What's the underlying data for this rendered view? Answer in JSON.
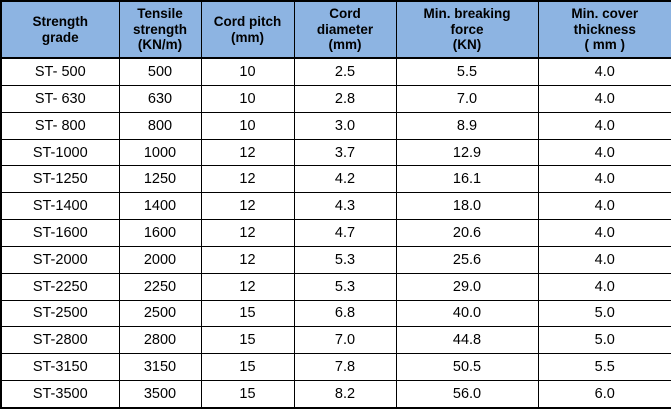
{
  "colors": {
    "header_bg": "#8DB4E2",
    "border": "#000000",
    "text": "#000000",
    "row_bg": "#FFFFFF"
  },
  "table": {
    "headers": [
      "Strength\ngrade",
      "Tensile\nstrength\n(KN/m)",
      "Cord pitch\n(mm)",
      "Cord\ndiameter\n(mm)",
      "Min. breaking\nforce\n(KN)",
      "Min. cover\nthickness\n( mm )"
    ],
    "rows": [
      [
        "ST- 500",
        "500",
        "10",
        "2.5",
        "5.5",
        "4.0"
      ],
      [
        "ST- 630",
        "630",
        "10",
        "2.8",
        "7.0",
        "4.0"
      ],
      [
        "ST- 800",
        "800",
        "10",
        "3.0",
        "8.9",
        "4.0"
      ],
      [
        "ST-1000",
        "1000",
        "12",
        "3.7",
        "12.9",
        "4.0"
      ],
      [
        "ST-1250",
        "1250",
        "12",
        "4.2",
        "16.1",
        "4.0"
      ],
      [
        "ST-1400",
        "1400",
        "12",
        "4.3",
        "18.0",
        "4.0"
      ],
      [
        "ST-1600",
        "1600",
        "12",
        "4.7",
        "20.6",
        "4.0"
      ],
      [
        "ST-2000",
        "2000",
        "12",
        "5.3",
        "25.6",
        "4.0"
      ],
      [
        "ST-2250",
        "2250",
        "12",
        "5.3",
        "29.0",
        "4.0"
      ],
      [
        "ST-2500",
        "2500",
        "15",
        "6.8",
        "40.0",
        "5.0"
      ],
      [
        "ST-2800",
        "2800",
        "15",
        "7.0",
        "44.8",
        "5.0"
      ],
      [
        "ST-3150",
        "3150",
        "15",
        "7.8",
        "50.5",
        "5.5"
      ],
      [
        "ST-3500",
        "3500",
        "15",
        "8.2",
        "56.0",
        "6.0"
      ]
    ]
  }
}
